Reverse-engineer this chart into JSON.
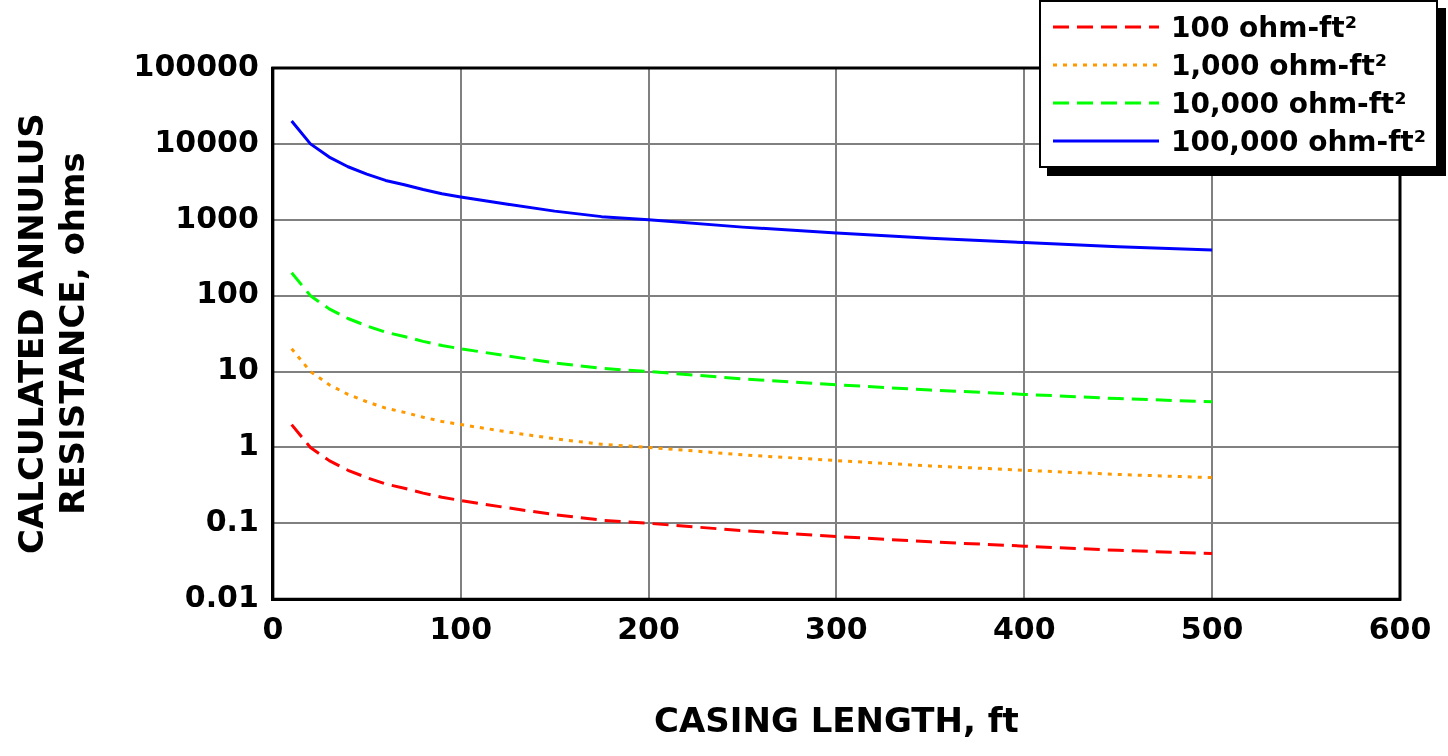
{
  "chart_data": {
    "type": "line",
    "xlabel": "CASING LENGTH, ft",
    "ylabel": "CALCULATED ANNULUS\nRESISTANCE, ohms",
    "x": [
      10,
      20,
      30,
      40,
      50,
      60,
      70,
      80,
      90,
      100,
      125,
      150,
      175,
      200,
      250,
      300,
      350,
      400,
      450,
      500
    ],
    "series": [
      {
        "name": "100 ohm-ft²",
        "color": "#ff0000",
        "line_style": "dashed",
        "values": [
          2,
          1,
          0.67,
          0.5,
          0.4,
          0.33,
          0.29,
          0.25,
          0.22,
          0.2,
          0.16,
          0.13,
          0.11,
          0.1,
          0.08,
          0.067,
          0.057,
          0.05,
          0.044,
          0.04
        ]
      },
      {
        "name": "1,000 ohm-ft²",
        "color": "#ff9900",
        "line_style": "dotted",
        "values": [
          20,
          10,
          6.7,
          5,
          4,
          3.3,
          2.9,
          2.5,
          2.2,
          2,
          1.6,
          1.3,
          1.1,
          1,
          0.8,
          0.67,
          0.57,
          0.5,
          0.44,
          0.4
        ]
      },
      {
        "name": "10,000 ohm-ft²",
        "color": "#00ff00",
        "line_style": "dashed",
        "values": [
          200,
          100,
          67,
          50,
          40,
          33,
          29,
          25,
          22,
          20,
          16,
          13,
          11,
          10,
          8,
          6.7,
          5.7,
          5,
          4.4,
          4
        ]
      },
      {
        "name": "100,000 ohm-ft²",
        "color": "#0000ff",
        "line_style": "solid",
        "values": [
          20000,
          10000,
          6700,
          5000,
          4000,
          3300,
          2900,
          2500,
          2200,
          2000,
          1600,
          1300,
          1100,
          1000,
          800,
          670,
          570,
          500,
          440,
          400
        ]
      }
    ],
    "log": "y",
    "xlim": [
      0,
      600
    ],
    "xticks": [
      0,
      100,
      200,
      300,
      400,
      500,
      600
    ],
    "ylim": [
      0.01,
      100000
    ],
    "yticks": [
      0.01,
      0.1,
      1,
      10,
      100,
      1000,
      10000,
      100000
    ],
    "grid": true,
    "legend": "top right",
    "marker": "none"
  }
}
